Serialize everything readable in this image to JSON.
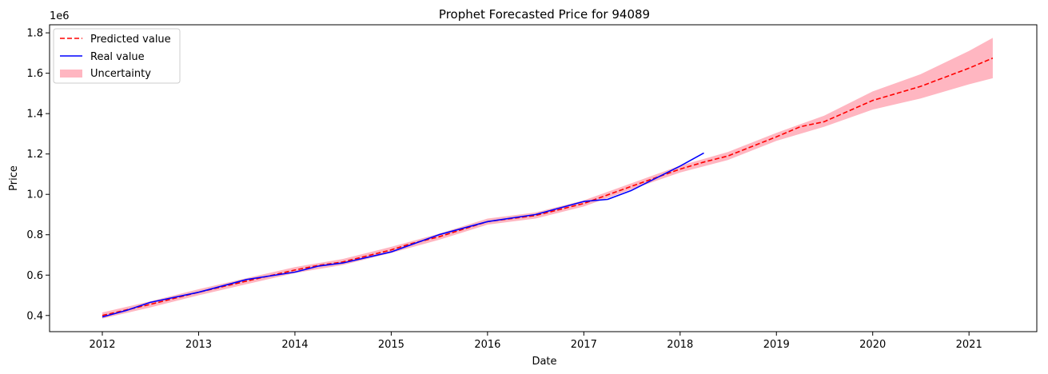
{
  "chart_data": {
    "type": "line",
    "title": "Prophet Forecasted Price for 94089",
    "xlabel": "Date",
    "ylabel": "Price",
    "y_offset_label": "1e6",
    "x_ticks": [
      "2012",
      "2013",
      "2014",
      "2015",
      "2016",
      "2017",
      "2018",
      "2019",
      "2020",
      "2021"
    ],
    "y_ticks": [
      "0.4",
      "0.6",
      "0.8",
      "1.0",
      "1.2",
      "1.4",
      "1.6",
      "1.8"
    ],
    "xlim": [
      "2011-06-15",
      "2021-09-15"
    ],
    "ylim": [
      0.32,
      1.84
    ],
    "y_unit_multiplier": 1000000,
    "grid": false,
    "legend_position": "top-left",
    "legend": {
      "predicted": "Predicted value",
      "real": "Real value",
      "uncertainty": "Uncertainty"
    },
    "colors": {
      "predicted": "#ff0000",
      "real": "#0000ff",
      "uncertainty": "#ffb6c1"
    },
    "series": [
      {
        "name": "Predicted value",
        "style": "dashed",
        "points": [
          [
            "2012-01-01",
            0.4
          ],
          [
            "2012-07-01",
            0.455
          ],
          [
            "2013-01-01",
            0.515
          ],
          [
            "2013-07-01",
            0.57
          ],
          [
            "2014-01-01",
            0.625
          ],
          [
            "2014-04-01",
            0.648
          ],
          [
            "2014-07-01",
            0.665
          ],
          [
            "2015-01-01",
            0.725
          ],
          [
            "2015-03-15",
            0.755
          ],
          [
            "2015-07-01",
            0.79
          ],
          [
            "2016-01-01",
            0.865
          ],
          [
            "2016-07-01",
            0.895
          ],
          [
            "2017-01-01",
            0.955
          ],
          [
            "2017-07-01",
            1.04
          ],
          [
            "2018-01-01",
            1.125
          ],
          [
            "2018-04-01",
            1.16
          ],
          [
            "2018-07-01",
            1.19
          ],
          [
            "2019-01-01",
            1.285
          ],
          [
            "2019-04-01",
            1.335
          ],
          [
            "2019-07-01",
            1.36
          ],
          [
            "2020-01-01",
            1.465
          ],
          [
            "2020-07-01",
            1.535
          ],
          [
            "2021-01-01",
            1.625
          ],
          [
            "2021-04-01",
            1.675
          ]
        ]
      },
      {
        "name": "Real value",
        "style": "solid",
        "points": [
          [
            "2012-01-01",
            0.393
          ],
          [
            "2012-04-01",
            0.425
          ],
          [
            "2012-07-01",
            0.465
          ],
          [
            "2013-01-01",
            0.515
          ],
          [
            "2013-07-01",
            0.578
          ],
          [
            "2014-01-01",
            0.615
          ],
          [
            "2014-04-01",
            0.645
          ],
          [
            "2014-07-01",
            0.66
          ],
          [
            "2015-01-01",
            0.715
          ],
          [
            "2015-07-01",
            0.8
          ],
          [
            "2016-01-01",
            0.865
          ],
          [
            "2016-07-01",
            0.9
          ],
          [
            "2017-01-01",
            0.965
          ],
          [
            "2017-04-01",
            0.975
          ],
          [
            "2017-07-01",
            1.02
          ],
          [
            "2018-01-01",
            1.14
          ],
          [
            "2018-04-01",
            1.205
          ]
        ]
      }
    ],
    "uncertainty_band": {
      "name": "Uncertainty",
      "points": [
        [
          "2012-01-01",
          0.385,
          0.415
        ],
        [
          "2012-07-01",
          0.44,
          0.47
        ],
        [
          "2013-01-01",
          0.5,
          0.53
        ],
        [
          "2013-07-01",
          0.555,
          0.585
        ],
        [
          "2014-01-01",
          0.61,
          0.64
        ],
        [
          "2014-07-01",
          0.65,
          0.68
        ],
        [
          "2015-01-01",
          0.71,
          0.74
        ],
        [
          "2015-07-01",
          0.775,
          0.805
        ],
        [
          "2016-01-01",
          0.85,
          0.88
        ],
        [
          "2016-07-01",
          0.88,
          0.91
        ],
        [
          "2017-01-01",
          0.94,
          0.97
        ],
        [
          "2017-07-01",
          1.025,
          1.055
        ],
        [
          "2018-01-01",
          1.108,
          1.142
        ],
        [
          "2018-07-01",
          1.17,
          1.21
        ],
        [
          "2019-01-01",
          1.265,
          1.305
        ],
        [
          "2019-07-01",
          1.335,
          1.39
        ],
        [
          "2020-01-01",
          1.42,
          1.51
        ],
        [
          "2020-07-01",
          1.475,
          1.595
        ],
        [
          "2021-01-01",
          1.545,
          1.71
        ],
        [
          "2021-04-01",
          1.575,
          1.775
        ]
      ]
    }
  }
}
